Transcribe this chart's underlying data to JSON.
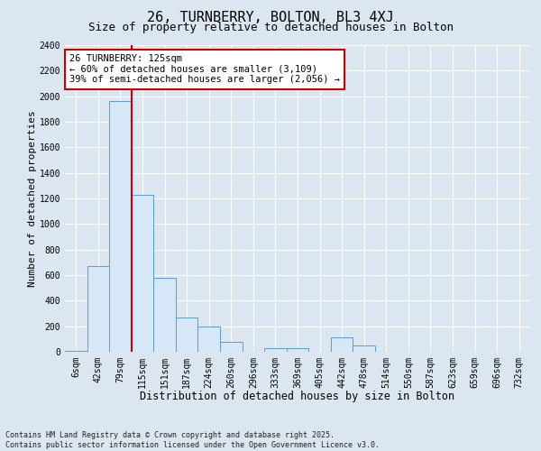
{
  "title1": "26, TURNBERRY, BOLTON, BL3 4XJ",
  "title2": "Size of property relative to detached houses in Bolton",
  "xlabel": "Distribution of detached houses by size in Bolton",
  "ylabel": "Number of detached properties",
  "footnote": "Contains HM Land Registry data © Crown copyright and database right 2025.\nContains public sector information licensed under the Open Government Licence v3.0.",
  "bin_labels": [
    "6sqm",
    "42sqm",
    "79sqm",
    "115sqm",
    "151sqm",
    "187sqm",
    "224sqm",
    "260sqm",
    "296sqm",
    "333sqm",
    "369sqm",
    "405sqm",
    "442sqm",
    "478sqm",
    "514sqm",
    "550sqm",
    "587sqm",
    "623sqm",
    "659sqm",
    "696sqm",
    "732sqm"
  ],
  "bar_values": [
    5,
    670,
    1960,
    1230,
    580,
    270,
    200,
    80,
    0,
    30,
    30,
    0,
    110,
    50,
    0,
    0,
    0,
    0,
    0,
    0,
    0
  ],
  "bar_color": "#d6e8f7",
  "bar_edge_color": "#5b9bd5",
  "vline_x_idx": 3,
  "vline_color": "#cc0000",
  "annotation_text": "26 TURNBERRY: 125sqm\n← 60% of detached houses are smaller (3,109)\n39% of semi-detached houses are larger (2,056) →",
  "annotation_box_facecolor": "#ffffff",
  "annotation_box_edgecolor": "#cc0000",
  "ylim": [
    0,
    2400
  ],
  "yticks": [
    0,
    200,
    400,
    600,
    800,
    1000,
    1200,
    1400,
    1600,
    1800,
    2000,
    2200,
    2400
  ],
  "bg_color": "#dce6f0",
  "grid_color": "#ffffff",
  "title1_fontsize": 11,
  "title2_fontsize": 9,
  "xlabel_fontsize": 8.5,
  "ylabel_fontsize": 8,
  "tick_fontsize": 7,
  "annot_fontsize": 7.5
}
